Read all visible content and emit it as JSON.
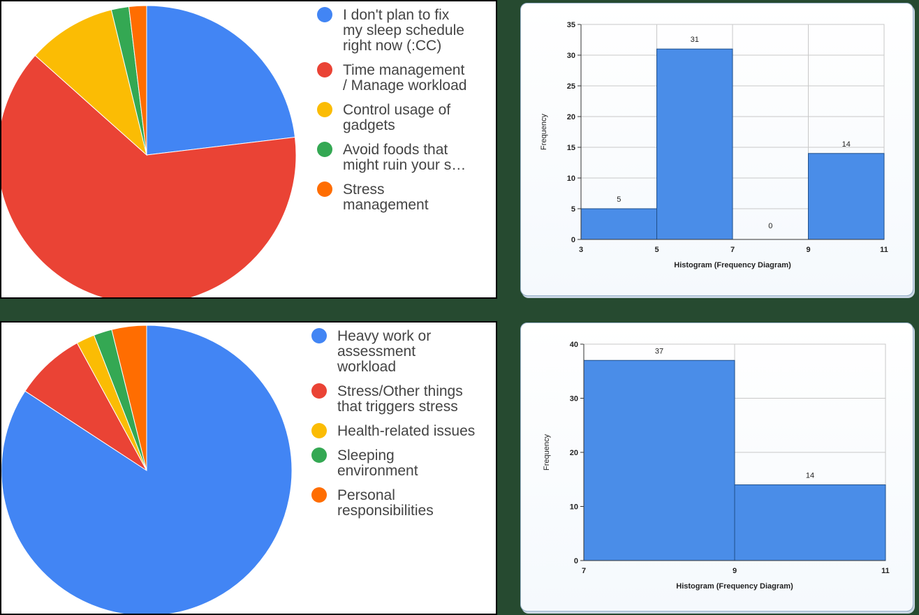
{
  "chart_data": [
    {
      "type": "pie",
      "categories": [
        "I don't plan to fix my sleep schedule right now (:CC)",
        "Time management / Manage workload",
        "Control usage of gadgets",
        "Avoid foods that might ruin your s…",
        "Stress management"
      ],
      "values": [
        23.1,
        63.5,
        9.6,
        1.9,
        1.9
      ],
      "colors": [
        "#4285f4",
        "#ea4335",
        "#fbbc04",
        "#34a853",
        "#ff6d01"
      ],
      "legend": [
        {
          "lines": [
            "I don't plan to fix",
            "my sleep schedule",
            "right now (:CC)"
          ]
        },
        {
          "lines": [
            "Time management",
            "/ Manage workload"
          ]
        },
        {
          "lines": [
            "Control usage of",
            "gadgets"
          ]
        },
        {
          "lines": [
            "Avoid foods that",
            "might ruin your s…"
          ]
        },
        {
          "lines": [
            "Stress",
            "management"
          ]
        }
      ]
    },
    {
      "type": "bar",
      "title": "",
      "xlabel": "Histogram (Frequency Diagram)",
      "ylabel": "Frequency",
      "bin_edges": [
        3,
        5,
        7,
        9,
        11
      ],
      "values": [
        5,
        31,
        0,
        14
      ],
      "ylim": [
        0,
        35
      ],
      "yticks": [
        0,
        5,
        10,
        15,
        20,
        25,
        30,
        35
      ],
      "color": "#4a8de8"
    },
    {
      "type": "pie",
      "categories": [
        "Heavy work or assessment workload",
        "Stress/Other things that triggers stress",
        "Health-related issues",
        "Sleeping environment",
        "Personal responsibilities"
      ],
      "values": [
        82.7,
        7.7,
        2.0,
        2.0,
        3.8
      ],
      "colors": [
        "#4285f4",
        "#ea4335",
        "#fbbc04",
        "#34a853",
        "#ff6d01"
      ],
      "legend": [
        {
          "lines": [
            "Heavy work or",
            "assessment",
            "workload"
          ]
        },
        {
          "lines": [
            "Stress/Other things",
            "that triggers stress"
          ]
        },
        {
          "lines": [
            "Health-related issues"
          ]
        },
        {
          "lines": [
            "Sleeping",
            "environment"
          ]
        },
        {
          "lines": [
            "Personal",
            "responsibilities"
          ]
        }
      ]
    },
    {
      "type": "bar",
      "title": "",
      "xlabel": "Histogram (Frequency Diagram)",
      "ylabel": "Frequency",
      "bin_edges": [
        7,
        9,
        11
      ],
      "values": [
        37,
        14
      ],
      "ylim": [
        0,
        40
      ],
      "yticks": [
        0,
        10,
        20,
        30,
        40
      ],
      "color": "#4a8de8"
    }
  ]
}
